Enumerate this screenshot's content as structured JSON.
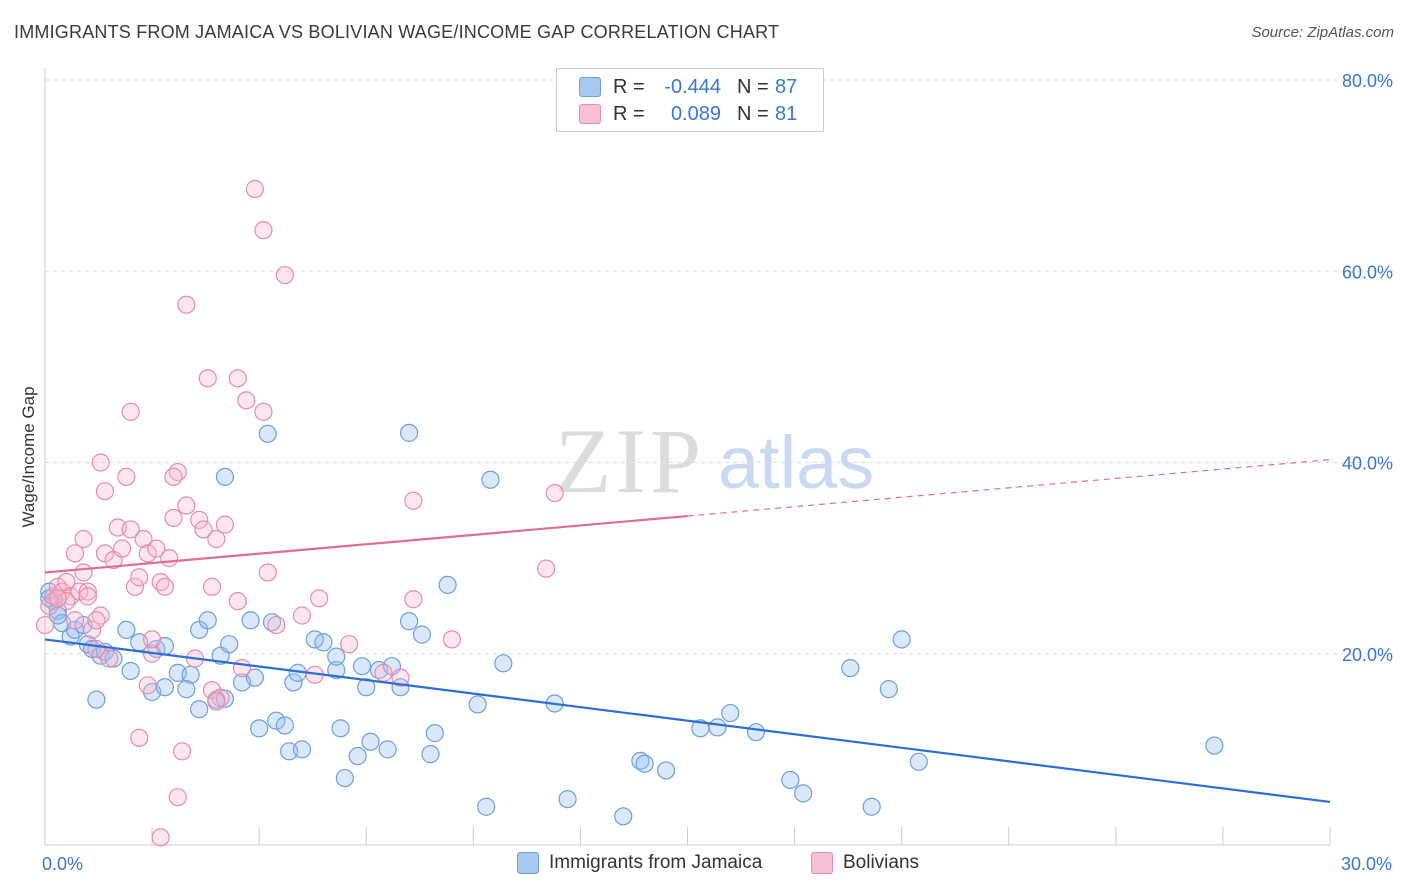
{
  "title": "IMMIGRANTS FROM JAMAICA VS BOLIVIAN WAGE/INCOME GAP CORRELATION CHART",
  "source": "Source: ZipAtlas.com",
  "watermark": {
    "zip": "ZIP",
    "atlas": "atlas"
  },
  "legend": {
    "rows": [
      {
        "r_label": "R =",
        "r_value": "-0.444",
        "n_label": "N =",
        "n_value": "87",
        "color": "#a9c8f0",
        "border": "#6d9fe0"
      },
      {
        "r_label": "R =",
        "r_value": "0.089",
        "n_label": "N =",
        "n_value": "81",
        "color": "#f7c0d2",
        "border": "#e98bab"
      }
    ]
  },
  "bottom_legend": [
    "Immigrants from Jamaica",
    "Bolivians"
  ],
  "chart_data": {
    "type": "scatter",
    "ylabel": "Wage/Income Gap",
    "xlim": [
      0,
      30
    ],
    "ylim": [
      0,
      80
    ],
    "x_tick_labels": [
      "0.0%",
      "30.0%"
    ],
    "y_tick_labels": [
      {
        "value": 80,
        "label": "80.0%"
      },
      {
        "value": 60,
        "label": "60.0%"
      },
      {
        "value": 40,
        "label": "40.0%"
      },
      {
        "value": 20,
        "label": "20.0%"
      }
    ],
    "grid": true,
    "series": [
      {
        "name": "Immigrants from Jamaica",
        "color": "#6d9fe0",
        "fill": "rgba(150,190,240,0.35)",
        "trend": {
          "x0": 0,
          "y0": 21.5,
          "x1": 30,
          "y1": 4.5,
          "solid_to": 30
        },
        "trend_color": "#2b6fd6",
        "points": [
          [
            0.1,
            26.5
          ],
          [
            0.2,
            25.5
          ],
          [
            0.3,
            24.5
          ],
          [
            0.1,
            25.8
          ],
          [
            0.4,
            23.2
          ],
          [
            0.6,
            21.8
          ],
          [
            0.7,
            22.5
          ],
          [
            0.9,
            23.0
          ],
          [
            1.0,
            21.0
          ],
          [
            1.1,
            20.5
          ],
          [
            1.3,
            19.8
          ],
          [
            1.4,
            20.2
          ],
          [
            1.6,
            19.5
          ],
          [
            1.9,
            22.5
          ],
          [
            2.2,
            21.2
          ],
          [
            2.0,
            18.2
          ],
          [
            2.6,
            20.5
          ],
          [
            2.8,
            20.8
          ],
          [
            3.1,
            18.0
          ],
          [
            3.4,
            17.8
          ],
          [
            3.6,
            22.5
          ],
          [
            3.8,
            23.5
          ],
          [
            4.1,
            19.8
          ],
          [
            4.3,
            21.0
          ],
          [
            4.6,
            17.0
          ],
          [
            4.9,
            17.5
          ],
          [
            4.8,
            23.5
          ],
          [
            5.3,
            23.3
          ],
          [
            5.8,
            17.0
          ],
          [
            5.9,
            18.0
          ],
          [
            6.3,
            21.5
          ],
          [
            6.5,
            21.2
          ],
          [
            6.8,
            18.3
          ],
          [
            6.8,
            19.7
          ],
          [
            7.4,
            18.7
          ],
          [
            7.5,
            16.5
          ],
          [
            7.8,
            18.3
          ],
          [
            8.1,
            18.7
          ],
          [
            8.3,
            16.5
          ],
          [
            8.5,
            23.4
          ],
          [
            8.8,
            22.0
          ],
          [
            9.4,
            27.2
          ],
          [
            1.2,
            15.2
          ],
          [
            2.5,
            16.0
          ],
          [
            2.8,
            16.5
          ],
          [
            3.3,
            16.3
          ],
          [
            3.6,
            14.2
          ],
          [
            4.0,
            15.2
          ],
          [
            4.2,
            15.3
          ],
          [
            5.0,
            12.2
          ],
          [
            5.4,
            13.0
          ],
          [
            5.6,
            12.5
          ],
          [
            5.7,
            9.8
          ],
          [
            6.0,
            10.0
          ],
          [
            6.9,
            12.2
          ],
          [
            7.0,
            7.0
          ],
          [
            7.3,
            9.3
          ],
          [
            7.6,
            10.8
          ],
          [
            8.0,
            10.0
          ],
          [
            9.0,
            9.5
          ],
          [
            9.1,
            11.7
          ],
          [
            10.1,
            14.7
          ],
          [
            10.3,
            4.0
          ],
          [
            10.7,
            19.0
          ],
          [
            11.9,
            14.8
          ],
          [
            12.2,
            4.8
          ],
          [
            13.5,
            3.0
          ],
          [
            13.9,
            8.8
          ],
          [
            14.0,
            8.5
          ],
          [
            14.5,
            7.8
          ],
          [
            15.3,
            12.2
          ],
          [
            15.7,
            12.3
          ],
          [
            16.0,
            13.8
          ],
          [
            16.6,
            11.8
          ],
          [
            17.4,
            6.8
          ],
          [
            17.7,
            5.4
          ],
          [
            18.8,
            18.5
          ],
          [
            19.3,
            4.0
          ],
          [
            19.7,
            16.3
          ],
          [
            20.0,
            21.5
          ],
          [
            20.4,
            8.7
          ],
          [
            27.3,
            10.4
          ],
          [
            5.2,
            43.0
          ],
          [
            8.5,
            43.1
          ],
          [
            10.4,
            38.2
          ],
          [
            4.2,
            38.5
          ],
          [
            0.3,
            24.0
          ]
        ]
      },
      {
        "name": "Bolivians",
        "color": "#e98bab",
        "fill": "rgba(247,185,205,0.35)",
        "trend": {
          "x0": 0,
          "y0": 28.5,
          "x1": 30,
          "y1": 40.3,
          "solid_to": 15
        },
        "trend_color": "#e06d98",
        "points": [
          [
            0.0,
            23.0
          ],
          [
            0.1,
            25.0
          ],
          [
            0.2,
            26.0
          ],
          [
            0.3,
            27.0
          ],
          [
            0.4,
            26.5
          ],
          [
            0.5,
            27.5
          ],
          [
            0.6,
            26.0
          ],
          [
            0.7,
            23.5
          ],
          [
            0.8,
            26.5
          ],
          [
            0.9,
            28.5
          ],
          [
            1.0,
            26.5
          ],
          [
            1.1,
            22.5
          ],
          [
            1.2,
            20.5
          ],
          [
            1.3,
            24.0
          ],
          [
            0.7,
            30.5
          ],
          [
            0.9,
            32.0
          ],
          [
            1.4,
            30.5
          ],
          [
            1.6,
            29.8
          ],
          [
            1.8,
            31.0
          ],
          [
            1.7,
            33.2
          ],
          [
            2.0,
            33.0
          ],
          [
            2.1,
            27.0
          ],
          [
            2.2,
            28.0
          ],
          [
            2.3,
            32.0
          ],
          [
            2.4,
            30.5
          ],
          [
            2.6,
            31.0
          ],
          [
            2.7,
            27.5
          ],
          [
            2.8,
            27.0
          ],
          [
            2.9,
            30.0
          ],
          [
            3.0,
            34.2
          ],
          [
            3.1,
            39.0
          ],
          [
            3.3,
            35.5
          ],
          [
            3.6,
            34.0
          ],
          [
            3.7,
            33.0
          ],
          [
            3.9,
            27.0
          ],
          [
            4.0,
            32.0
          ],
          [
            4.2,
            33.5
          ],
          [
            4.5,
            25.5
          ],
          [
            5.2,
            28.5
          ],
          [
            1.3,
            40.0
          ],
          [
            1.4,
            37.0
          ],
          [
            1.9,
            38.5
          ],
          [
            2.0,
            45.3
          ],
          [
            3.0,
            38.5
          ],
          [
            3.3,
            56.5
          ],
          [
            3.8,
            48.8
          ],
          [
            4.5,
            48.8
          ],
          [
            4.7,
            46.5
          ],
          [
            5.1,
            45.3
          ],
          [
            5.1,
            64.3
          ],
          [
            5.6,
            59.6
          ],
          [
            4.9,
            68.6
          ],
          [
            6.4,
            25.8
          ],
          [
            7.1,
            21.0
          ],
          [
            7.9,
            18.0
          ],
          [
            8.3,
            17.5
          ],
          [
            8.6,
            25.7
          ],
          [
            8.6,
            36.0
          ],
          [
            9.5,
            21.5
          ],
          [
            11.7,
            28.9
          ],
          [
            11.9,
            36.8
          ],
          [
            1.2,
            23.5
          ],
          [
            1.5,
            19.5
          ],
          [
            2.5,
            20.0
          ],
          [
            2.2,
            11.2
          ],
          [
            3.2,
            9.8
          ],
          [
            3.1,
            5.0
          ],
          [
            2.7,
            0.8
          ],
          [
            2.4,
            16.7
          ],
          [
            3.5,
            19.5
          ],
          [
            3.9,
            16.2
          ],
          [
            4.1,
            15.4
          ],
          [
            4.6,
            18.5
          ],
          [
            5.4,
            23.0
          ],
          [
            6.0,
            24.0
          ],
          [
            6.3,
            17.8
          ],
          [
            2.5,
            21.5
          ],
          [
            1.0,
            26.0
          ],
          [
            0.5,
            25.5
          ],
          [
            0.3,
            25.8
          ],
          [
            4.0,
            15.0
          ]
        ]
      }
    ]
  }
}
